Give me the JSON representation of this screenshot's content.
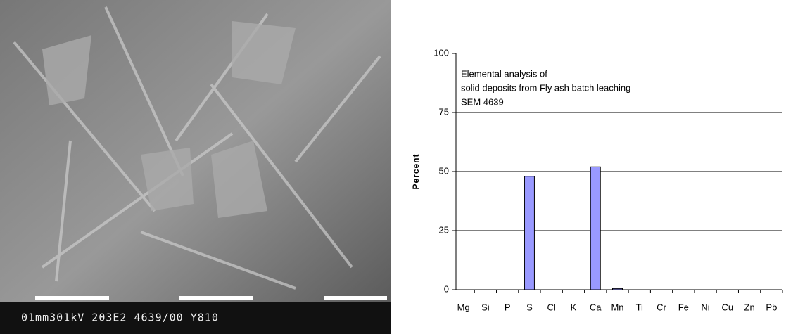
{
  "image": {
    "caption": "01mm301kV 203E2 4639/00 Y810"
  },
  "chart_data": {
    "type": "bar",
    "annotation": [
      "Elemental analysis of",
      "solid deposits from Fly ash batch leaching",
      "SEM 4639"
    ],
    "y_label": "Percent",
    "categories": [
      "Mg",
      "Si",
      "P",
      "S",
      "Cl",
      "K",
      "Ca",
      "Mn",
      "Ti",
      "Cr",
      "Fe",
      "Ni",
      "Cu",
      "Zn",
      "Pb"
    ],
    "values": [
      0,
      0,
      0,
      48,
      0,
      0,
      52,
      0.5,
      0,
      0,
      0,
      0,
      0,
      0,
      0
    ],
    "color": "#9999ff",
    "ylim": [
      0,
      100
    ],
    "yticks": [
      0,
      25,
      50,
      75,
      100
    ],
    "grid": true
  }
}
